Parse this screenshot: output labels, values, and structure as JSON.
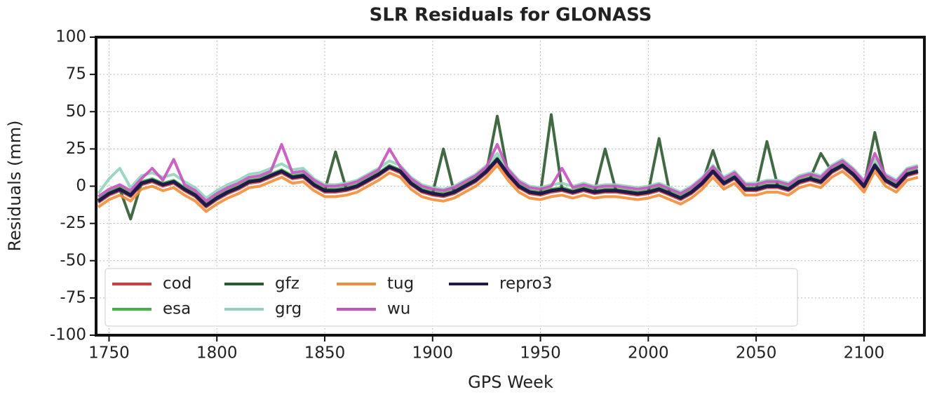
{
  "chart_data": {
    "type": "line",
    "title": "SLR Residuals for GLONASS",
    "x_label": "GPS Week",
    "y_label": "Residuals (mm)",
    "xlim": [
      1744,
      2128
    ],
    "ylim": [
      -100,
      100
    ],
    "xticks": [
      1750,
      1800,
      1850,
      1900,
      1950,
      2000,
      2050,
      2100
    ],
    "yticks": [
      -100,
      -75,
      -50,
      -25,
      0,
      25,
      50,
      75,
      100
    ],
    "yticks_labels_note_free": true,
    "grid": true,
    "legend": "lower left",
    "legend_columns": 6,
    "x": [
      1745,
      1750,
      1755,
      1760,
      1765,
      1770,
      1775,
      1780,
      1785,
      1790,
      1795,
      1800,
      1805,
      1810,
      1815,
      1820,
      1825,
      1830,
      1835,
      1840,
      1845,
      1850,
      1855,
      1860,
      1865,
      1870,
      1875,
      1880,
      1885,
      1890,
      1895,
      1900,
      1905,
      1910,
      1915,
      1920,
      1925,
      1930,
      1935,
      1940,
      1945,
      1950,
      1955,
      1960,
      1965,
      1970,
      1975,
      1980,
      1985,
      1990,
      1995,
      2000,
      2005,
      2010,
      2015,
      2020,
      2025,
      2030,
      2035,
      2040,
      2045,
      2050,
      2055,
      2060,
      2065,
      2070,
      2075,
      2080,
      2085,
      2090,
      2095,
      2100,
      2105,
      2110,
      2115,
      2120,
      2125
    ],
    "series": [
      {
        "name": "cod",
        "color": "#d8383a",
        "values": [
          -11,
          -6,
          -3,
          -7,
          1,
          3,
          0,
          2,
          -3,
          -7,
          -14,
          -9,
          -5,
          -2,
          2,
          3,
          6,
          9,
          5,
          6,
          0,
          -4,
          -4,
          -3,
          -1,
          3,
          7,
          12,
          9,
          1,
          -4,
          -6,
          -7,
          -5,
          -1,
          3,
          9,
          17,
          7,
          -1,
          -5,
          -6,
          -4,
          -3,
          -5,
          -3,
          -5,
          -4,
          -4,
          -5,
          -6,
          -5,
          -3,
          -6,
          -9,
          -5,
          1,
          9,
          1,
          5,
          -3,
          -3,
          -1,
          -1,
          -3,
          2,
          4,
          2,
          9,
          13,
          7,
          -1,
          13,
          3,
          -1,
          7,
          9
        ]
      },
      {
        "name": "esa",
        "color": "#42b445",
        "values": [
          -9,
          -4,
          -1,
          -5,
          3,
          5,
          2,
          4,
          -1,
          -5,
          -12,
          -7,
          -3,
          0,
          4,
          5,
          8,
          11,
          7,
          8,
          2,
          -2,
          -2,
          -1,
          1,
          5,
          9,
          14,
          11,
          3,
          -2,
          -4,
          -5,
          -3,
          1,
          5,
          11,
          19,
          9,
          1,
          -3,
          -4,
          -2,
          -1,
          -3,
          -1,
          -3,
          -2,
          -2,
          -3,
          -4,
          -3,
          -1,
          -4,
          -7,
          -3,
          3,
          11,
          3,
          7,
          -1,
          -1,
          1,
          1,
          -1,
          4,
          6,
          4,
          11,
          15,
          9,
          1,
          15,
          5,
          1,
          9,
          11
        ]
      },
      {
        "name": "gfz",
        "color": "#2c5a30",
        "values": [
          -10,
          -5,
          -2,
          -22,
          2,
          4,
          1,
          3,
          -2,
          -6,
          -13,
          -8,
          -4,
          -1,
          3,
          4,
          7,
          10,
          6,
          7,
          1,
          -3,
          23,
          -2,
          0,
          4,
          8,
          13,
          10,
          2,
          -3,
          -5,
          25,
          -4,
          0,
          4,
          10,
          47,
          8,
          0,
          -4,
          -5,
          48,
          -2,
          -4,
          -2,
          -4,
          25,
          -3,
          -4,
          -5,
          -4,
          32,
          -5,
          -8,
          -4,
          2,
          24,
          2,
          6,
          -2,
          -2,
          30,
          0,
          -2,
          3,
          5,
          22,
          10,
          14,
          8,
          0,
          36,
          4,
          0,
          8,
          10
        ]
      },
      {
        "name": "grg",
        "color": "#94d2be",
        "values": [
          -5,
          5,
          12,
          -1,
          7,
          9,
          6,
          8,
          3,
          -1,
          -8,
          -3,
          1,
          4,
          8,
          9,
          12,
          15,
          11,
          12,
          5,
          1,
          1,
          2,
          4,
          8,
          12,
          17,
          14,
          6,
          1,
          -1,
          -2,
          0,
          4,
          8,
          14,
          22,
          12,
          4,
          0,
          -1,
          1,
          2,
          0,
          2,
          0,
          1,
          1,
          0,
          -1,
          0,
          2,
          -1,
          -4,
          0,
          6,
          14,
          6,
          10,
          2,
          2,
          4,
          4,
          2,
          7,
          9,
          7,
          14,
          18,
          12,
          4,
          18,
          8,
          4,
          12,
          14
        ]
      },
      {
        "name": "tug",
        "color": "#f28e3a",
        "values": [
          -14,
          -9,
          -6,
          -10,
          -2,
          0,
          -3,
          -1,
          -6,
          -10,
          -17,
          -12,
          -8,
          -5,
          -1,
          0,
          3,
          6,
          2,
          3,
          -3,
          -7,
          -7,
          -6,
          -4,
          0,
          4,
          9,
          6,
          -2,
          -7,
          -9,
          -10,
          -8,
          -4,
          0,
          6,
          14,
          4,
          -4,
          -8,
          -9,
          -7,
          -6,
          -8,
          -6,
          -8,
          -7,
          -7,
          -8,
          -9,
          -8,
          -6,
          -9,
          -12,
          -8,
          -2,
          6,
          -2,
          2,
          -6,
          -6,
          -4,
          -4,
          -6,
          -1,
          1,
          -1,
          6,
          10,
          4,
          -4,
          10,
          0,
          -4,
          4,
          6
        ]
      },
      {
        "name": "wu",
        "color": "#c452bd",
        "values": [
          -7,
          -2,
          1,
          -3,
          5,
          12,
          4,
          18,
          1,
          -3,
          -10,
          -5,
          -1,
          2,
          6,
          7,
          10,
          28,
          9,
          10,
          4,
          0,
          0,
          1,
          3,
          7,
          11,
          25,
          13,
          5,
          0,
          -2,
          -3,
          -1,
          3,
          7,
          13,
          28,
          11,
          3,
          -1,
          -2,
          0,
          12,
          -1,
          1,
          -1,
          0,
          0,
          -1,
          -2,
          -1,
          1,
          -2,
          -5,
          -1,
          5,
          13,
          5,
          9,
          1,
          1,
          3,
          3,
          1,
          6,
          8,
          6,
          13,
          17,
          11,
          3,
          22,
          7,
          3,
          11,
          13
        ]
      },
      {
        "name": "repro3",
        "color": "#1e1b4b",
        "values": [
          -10,
          -5,
          -2,
          -6,
          2,
          4,
          1,
          3,
          -2,
          -6,
          -13,
          -8,
          -4,
          -1,
          3,
          4,
          7,
          10,
          6,
          7,
          1,
          -3,
          -3,
          -2,
          0,
          4,
          8,
          13,
          10,
          2,
          -3,
          -5,
          -6,
          -4,
          0,
          4,
          10,
          18,
          8,
          0,
          -4,
          -5,
          -3,
          -2,
          -4,
          -2,
          -4,
          -3,
          -3,
          -4,
          -5,
          -4,
          -2,
          -5,
          -8,
          -4,
          2,
          10,
          2,
          6,
          -2,
          -2,
          0,
          0,
          -2,
          3,
          5,
          3,
          10,
          14,
          8,
          0,
          14,
          4,
          0,
          8,
          10
        ]
      }
    ]
  }
}
